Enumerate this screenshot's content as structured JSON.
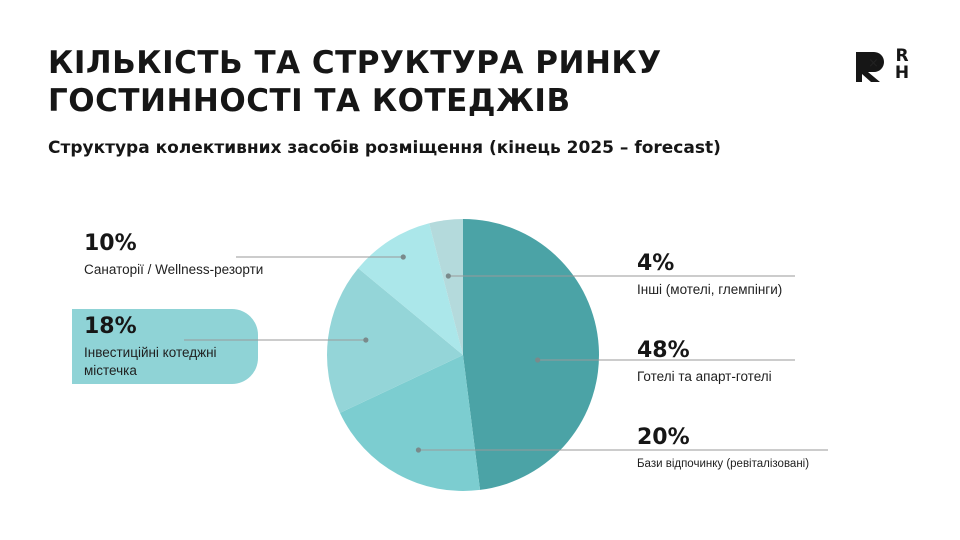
{
  "header": {
    "title_line1": "Кількість та структура ринку",
    "title_line2": "гостинності та котеджів",
    "subtitle": "Структура колективних засобів розміщення (кінець 2025 – forecast)"
  },
  "logo": {
    "separator": "×",
    "letter_r": "R",
    "letter_h": "H"
  },
  "chart_data": {
    "type": "pie",
    "title": "Структура колективних засобів розміщення (кінець 2025 – forecast)",
    "slices": [
      {
        "label": "Готелі та апарт-готелі",
        "value": 48,
        "pct_label": "48%",
        "color": "#4ba3a6"
      },
      {
        "label": "Бази відпочинку (ревіталізовані)",
        "value": 20,
        "pct_label": "20%",
        "color": "#7ccdd0"
      },
      {
        "label": "Інвестиційні котеджні містечка",
        "value": 18,
        "pct_label": "18%",
        "color": "#94d5d8"
      },
      {
        "label": "Санаторії / Wellness-резорти",
        "value": 10,
        "pct_label": "10%",
        "color": "#abe7ea"
      },
      {
        "label": "Інші (мотелі, глемпінги)",
        "value": 4,
        "pct_label": "4%",
        "color": "#b4dadc"
      }
    ],
    "start_angle_deg": 0,
    "direction": "clockwise",
    "highlighted": "Інвестиційні котеджні містечка"
  }
}
